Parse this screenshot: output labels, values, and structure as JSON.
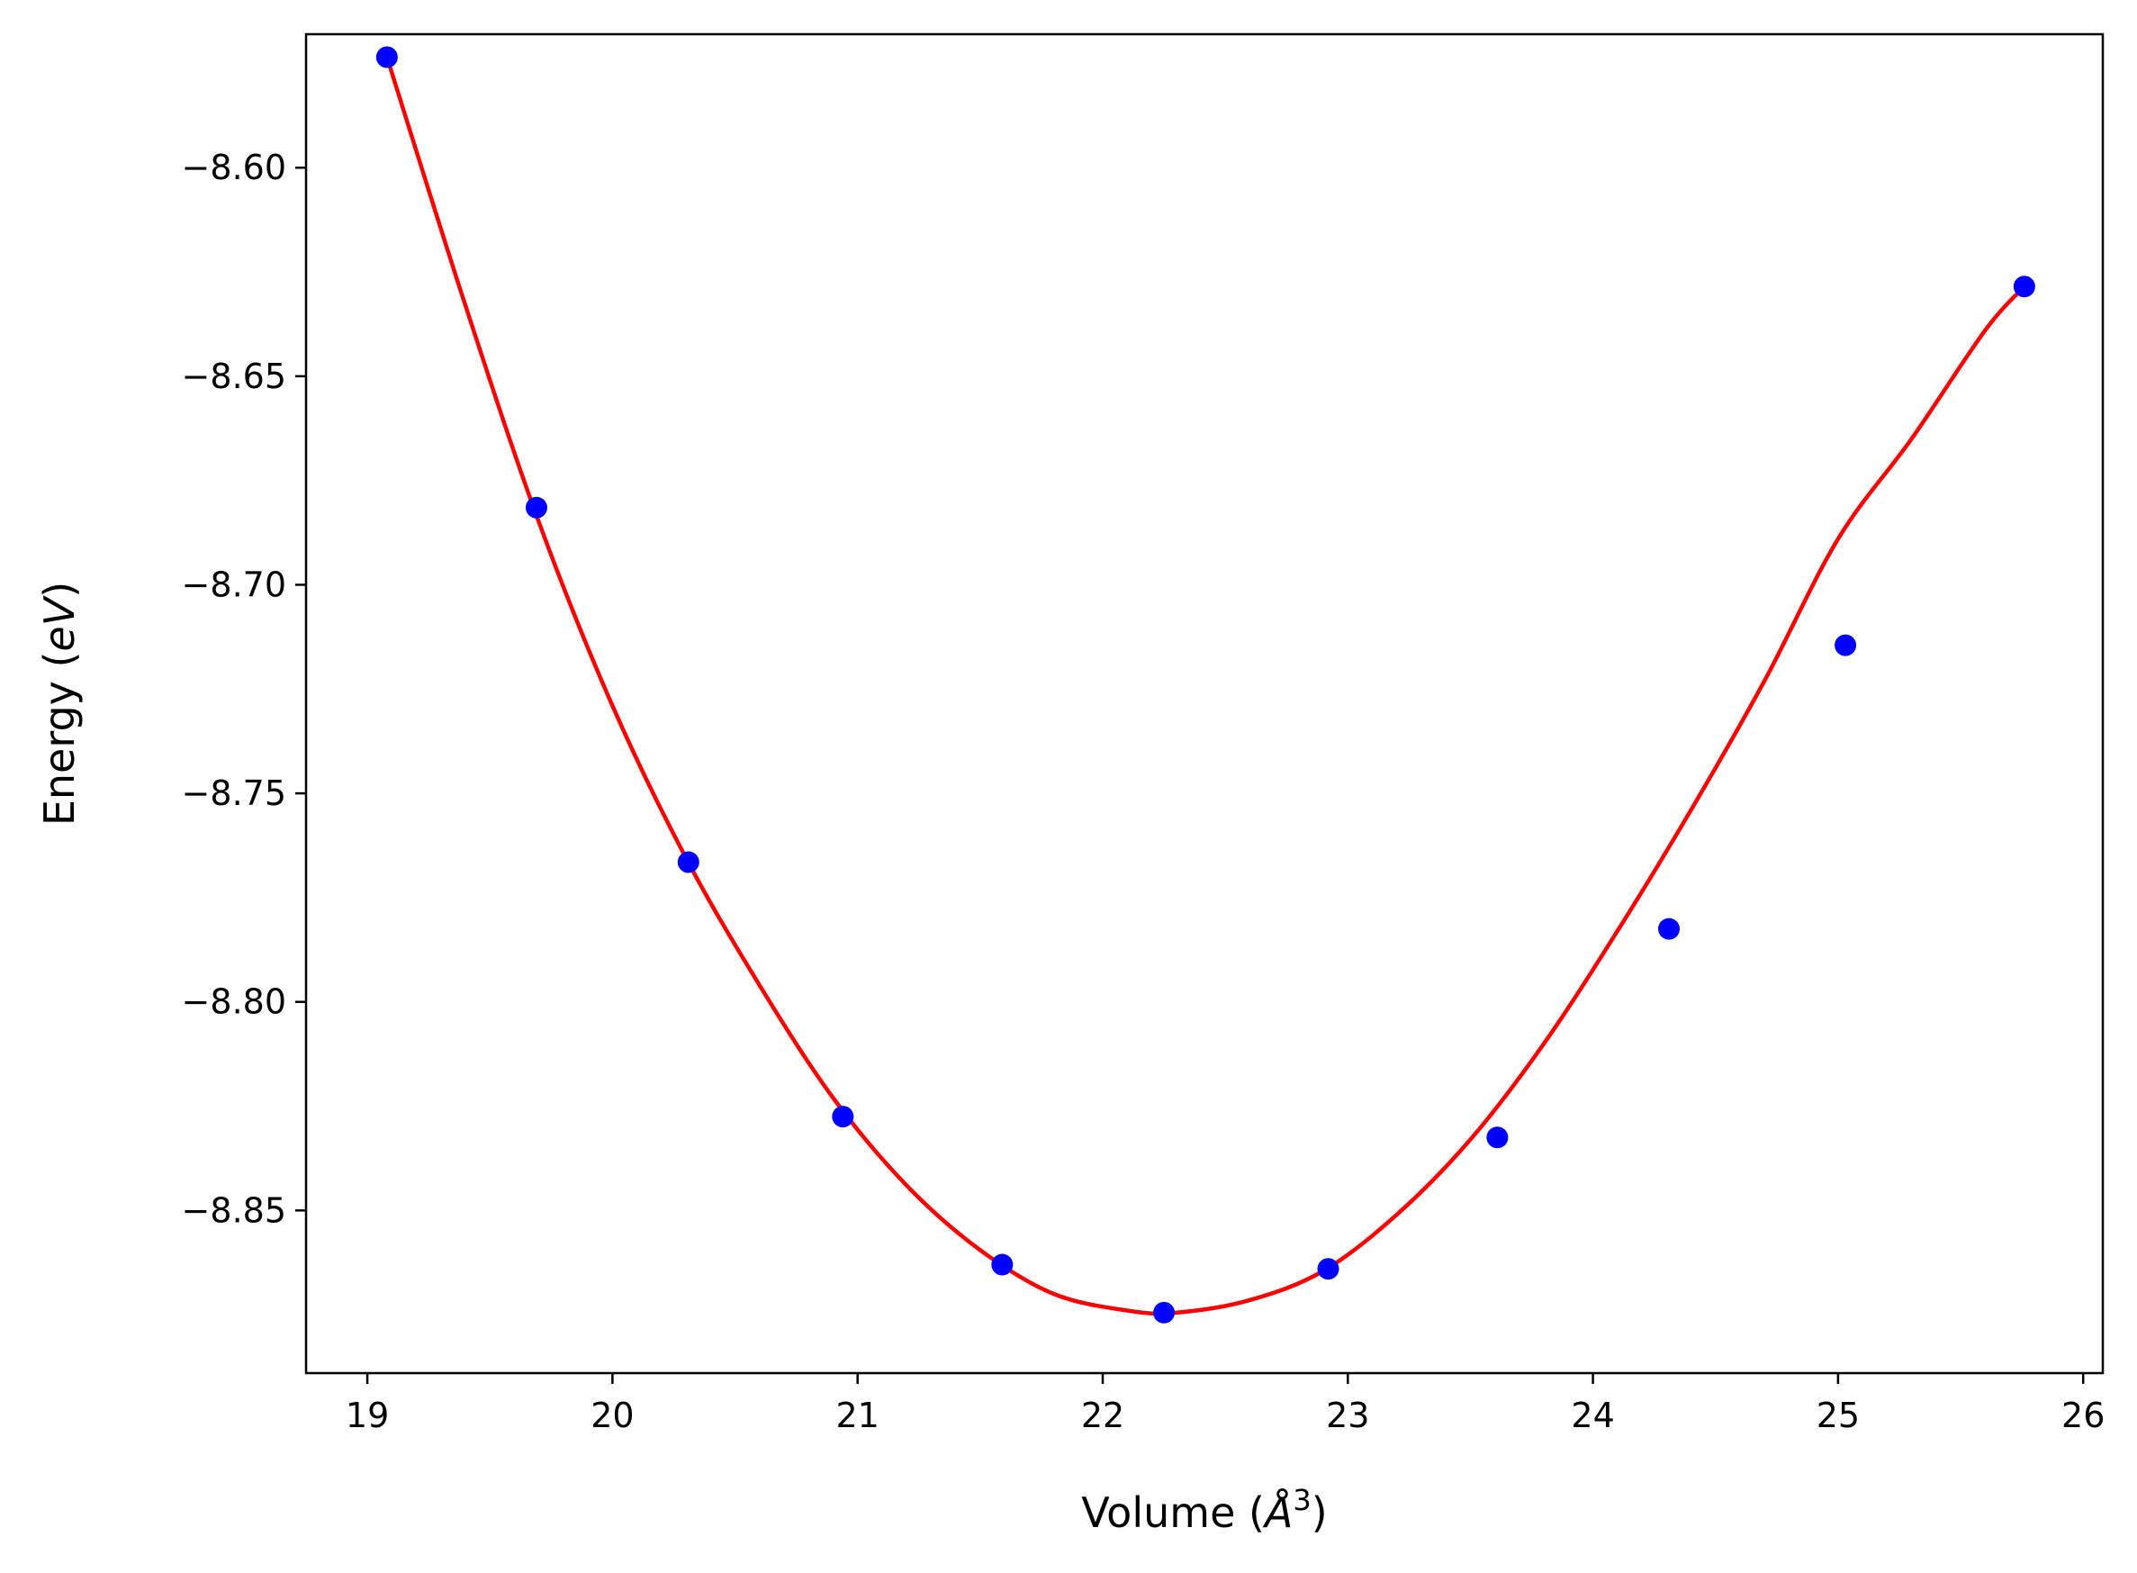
{
  "chart_data": {
    "type": "scatter",
    "title": "",
    "xlabel": {
      "prefix": "Volume (",
      "symbol": "Å",
      "sup": "3",
      "suffix": ")"
    },
    "ylabel": {
      "prefix": "Energy (",
      "symbol": "eV",
      "suffix": ")"
    },
    "xlim": [
      18.75,
      26.08
    ],
    "ylim": [
      -8.889,
      -8.568
    ],
    "xticks": [
      19,
      20,
      21,
      22,
      23,
      24,
      25,
      26
    ],
    "yticks": [
      -8.6,
      -8.65,
      -8.7,
      -8.75,
      -8.8,
      -8.85
    ],
    "xtick_labels": [
      "19",
      "20",
      "21",
      "22",
      "23",
      "24",
      "25",
      "26"
    ],
    "ytick_labels": [
      "−8.60",
      "−8.65",
      "−8.70",
      "−8.75",
      "−8.80",
      "−8.85"
    ],
    "grid": false,
    "legend": "none",
    "series": [
      {
        "kind": "points",
        "color": "#0000ff",
        "x": [
          19.08,
          19.69,
          20.31,
          20.94,
          21.59,
          22.25,
          22.92,
          23.61,
          24.31,
          25.03,
          25.76
        ],
        "y": [
          -8.5735,
          -8.6815,
          -8.7665,
          -8.8275,
          -8.863,
          -8.8745,
          -8.864,
          -8.8325,
          -8.7825,
          -8.7145,
          -8.6285
        ]
      },
      {
        "kind": "fit-curve",
        "color": "#ff0000",
        "x": [
          19.08,
          19.4,
          19.7,
          20.0,
          20.3,
          20.6,
          20.9,
          21.2,
          21.5,
          21.8,
          22.1,
          22.3,
          22.6,
          22.9,
          23.2,
          23.5,
          23.8,
          24.1,
          24.4,
          24.7,
          25.0,
          25.3,
          25.6,
          25.76
        ],
        "y": [
          -8.5735,
          -8.633,
          -8.685,
          -8.729,
          -8.7655,
          -8.796,
          -8.823,
          -8.844,
          -8.8595,
          -8.87,
          -8.874,
          -8.8745,
          -8.8715,
          -8.8645,
          -8.851,
          -8.833,
          -8.81,
          -8.783,
          -8.754,
          -8.723,
          -8.689,
          -8.665,
          -8.639,
          -8.6285
        ]
      }
    ]
  }
}
